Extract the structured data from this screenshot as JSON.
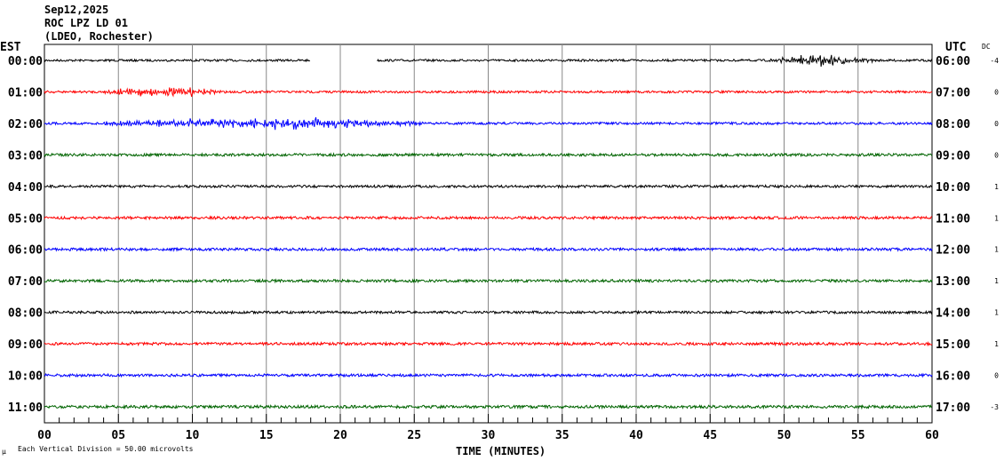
{
  "header": {
    "date": "Sep12,2025",
    "station": "ROC LPZ LD 01",
    "network": "(LDEO, Rochester)"
  },
  "left_axis_title": "EST",
  "right_axis_title": "UTC",
  "dc_title": "DC",
  "footer": {
    "corner_mark": "μ",
    "scale_note": "Each Vertical Division =   50.00 microvolts"
  },
  "chart_data": {
    "type": "line",
    "title": "ROC LPZ LD 01 helicorder Sep12,2025",
    "xlabel": "TIME (MINUTES)",
    "xlim": [
      0,
      60
    ],
    "x_ticks": [
      "00",
      "05",
      "10",
      "15",
      "20",
      "25",
      "30",
      "35",
      "40",
      "45",
      "50",
      "55",
      "60"
    ],
    "minor_tick_step": 1,
    "grid": true,
    "rows": [
      {
        "est": "00:00",
        "utc": "06:00",
        "dc": "-4",
        "color": "#000000",
        "amp": 1.2,
        "gap": [
          18,
          22.5
        ],
        "events": [
          {
            "start": 49,
            "end": 56,
            "amp": 3.5
          }
        ]
      },
      {
        "est": "01:00",
        "utc": "07:00",
        "dc": "0",
        "color": "#ff0000",
        "amp": 1.3,
        "events": [
          {
            "start": 4,
            "end": 12,
            "amp": 3
          }
        ]
      },
      {
        "est": "02:00",
        "utc": "08:00",
        "dc": "0",
        "color": "#0000ff",
        "amp": 1.3,
        "events": [
          {
            "start": 4,
            "end": 26,
            "amp": 3.5
          }
        ]
      },
      {
        "est": "03:00",
        "utc": "09:00",
        "dc": "0",
        "color": "#006400",
        "amp": 1.5,
        "events": []
      },
      {
        "est": "04:00",
        "utc": "10:00",
        "dc": "1",
        "color": "#000000",
        "amp": 1.4,
        "events": []
      },
      {
        "est": "05:00",
        "utc": "11:00",
        "dc": "1",
        "color": "#ff0000",
        "amp": 1.5,
        "events": []
      },
      {
        "est": "06:00",
        "utc": "12:00",
        "dc": "1",
        "color": "#0000ff",
        "amp": 1.5,
        "events": []
      },
      {
        "est": "07:00",
        "utc": "13:00",
        "dc": "1",
        "color": "#006400",
        "amp": 1.5,
        "events": []
      },
      {
        "est": "08:00",
        "utc": "14:00",
        "dc": "1",
        "color": "#000000",
        "amp": 1.4,
        "events": []
      },
      {
        "est": "09:00",
        "utc": "15:00",
        "dc": "1",
        "color": "#ff0000",
        "amp": 1.5,
        "events": []
      },
      {
        "est": "10:00",
        "utc": "16:00",
        "dc": "0",
        "color": "#0000ff",
        "amp": 1.5,
        "events": []
      },
      {
        "est": "11:00",
        "utc": "17:00",
        "dc": "-3",
        "color": "#006400",
        "amp": 1.6,
        "events": []
      }
    ]
  }
}
